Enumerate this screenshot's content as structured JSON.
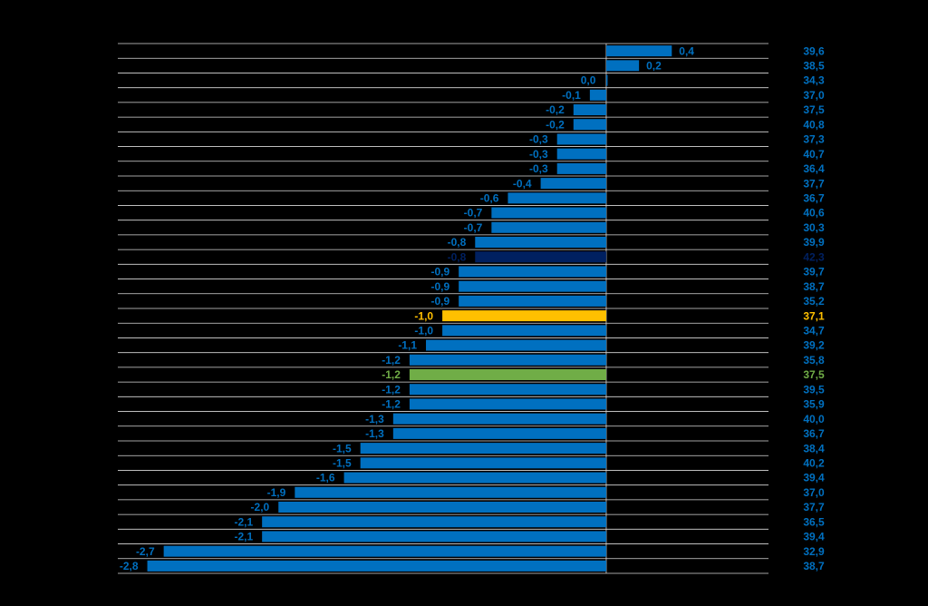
{
  "chart_data": {
    "type": "hbar",
    "categories": [
      "39,6",
      "38,5",
      "34,3",
      "37,0",
      "37,5",
      "40,8",
      "37,3",
      "40,7",
      "36,4",
      "37,7",
      "36,7",
      "40,6",
      "30,3",
      "39,9",
      "42,3",
      "39,7",
      "38,7",
      "35,2",
      "37,1",
      "34,7",
      "39,2",
      "35,8",
      "37,5",
      "39,5",
      "35,9",
      "40,0",
      "36,7",
      "38,4",
      "40,2",
      "39,4",
      "37,0",
      "37,7",
      "36,5",
      "39,4",
      "32,9",
      "38,7"
    ],
    "values": [
      0.4,
      0.2,
      0.0,
      -0.1,
      -0.2,
      -0.2,
      -0.3,
      -0.3,
      -0.3,
      -0.4,
      -0.6,
      -0.7,
      -0.7,
      -0.8,
      -0.8,
      -0.9,
      -0.9,
      -0.9,
      -1.0,
      -1.0,
      -1.1,
      -1.2,
      -1.2,
      -1.2,
      -1.2,
      -1.3,
      -1.3,
      -1.5,
      -1.5,
      -1.6,
      -1.9,
      -2.0,
      -2.1,
      -2.1,
      -2.7,
      -2.8
    ],
    "value_labels": [
      "0,4",
      "0,2",
      "0,0",
      "-0,1",
      "-0,2",
      "-0,2",
      "-0,3",
      "-0,3",
      "-0,3",
      "-0,4",
      "-0,6",
      "-0,7",
      "-0,7",
      "-0,8",
      "-0,8",
      "-0,9",
      "-0,9",
      "-0,9",
      "-1,0",
      "-1,0",
      "-1,1",
      "-1,2",
      "-1,2",
      "-1,2",
      "-1,2",
      "-1,3",
      "-1,3",
      "-1,5",
      "-1,5",
      "-1,6",
      "-1,9",
      "-2,0",
      "-2,1",
      "-2,1",
      "-2,7",
      "-2,8"
    ],
    "colors": [
      "#0070c0",
      "#0070c0",
      "#0070c0",
      "#0070c0",
      "#0070c0",
      "#0070c0",
      "#0070c0",
      "#0070c0",
      "#0070c0",
      "#0070c0",
      "#0070c0",
      "#0070c0",
      "#0070c0",
      "#0070c0",
      "#002060",
      "#0070c0",
      "#0070c0",
      "#0070c0",
      "#ffc000",
      "#0070c0",
      "#0070c0",
      "#0070c0",
      "#70ad47",
      "#0070c0",
      "#0070c0",
      "#0070c0",
      "#0070c0",
      "#0070c0",
      "#0070c0",
      "#0070c0",
      "#0070c0",
      "#0070c0",
      "#0070c0",
      "#0070c0",
      "#0070c0",
      "#0070c0"
    ],
    "xlim": [
      -2.98,
      0.99
    ],
    "grid": true
  }
}
